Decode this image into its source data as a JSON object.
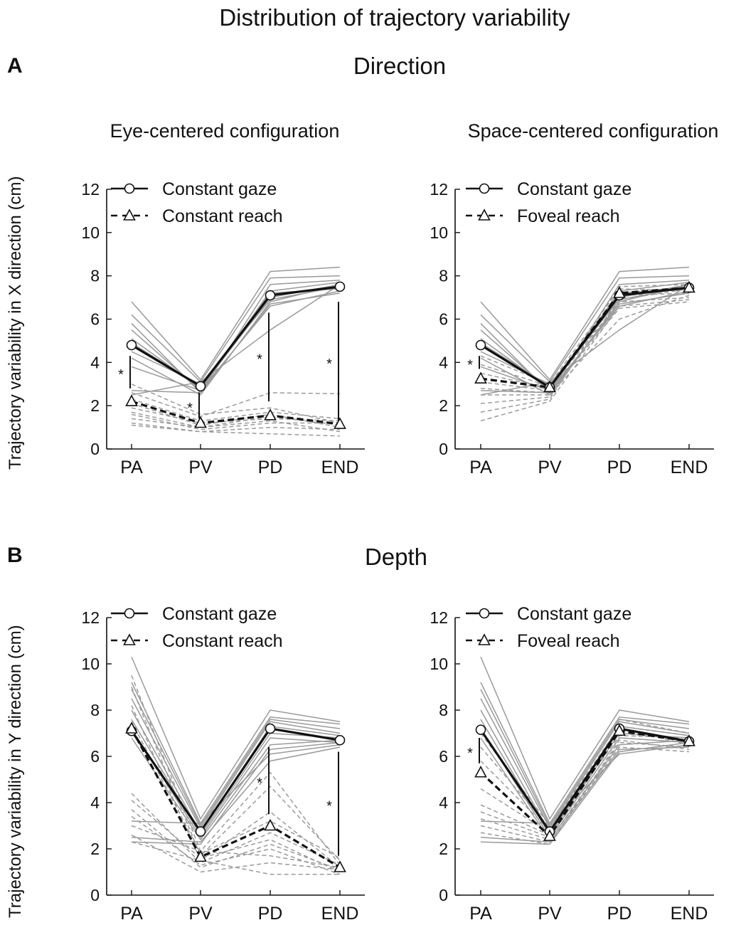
{
  "title": "Distribution of trajectory variability",
  "panels": [
    {
      "letter": "A",
      "title": "Direction",
      "ylabel": "Trajectory variability in X direction (cm)"
    },
    {
      "letter": "B",
      "title": "Depth",
      "ylabel": "Trajectory variability in Y direction (cm)"
    }
  ],
  "chart_data": [
    {
      "type": "line",
      "title": "Eye-centered configuration",
      "categories": [
        "PA",
        "PV",
        "PD",
        "END"
      ],
      "ylim": [
        0,
        12
      ],
      "yticks": [
        0,
        2,
        4,
        6,
        8,
        10,
        12
      ],
      "legend_position": "top-left",
      "series": [
        {
          "name": "Constant gaze",
          "values": [
            4.8,
            2.9,
            7.1,
            7.5
          ],
          "style": "solid",
          "marker": "circle"
        },
        {
          "name": "Constant reach",
          "values": [
            2.2,
            1.2,
            1.55,
            1.15
          ],
          "style": "dashed",
          "marker": "triangle"
        }
      ],
      "subject_lines": {
        "solid": [
          [
            6.8,
            3.2,
            8.2,
            8.4
          ],
          [
            6.2,
            3.1,
            7.9,
            8.0
          ],
          [
            5.8,
            2.6,
            7.6,
            7.8
          ],
          [
            5.5,
            2.7,
            7.3,
            7.7
          ],
          [
            5.1,
            2.8,
            7.0,
            7.6
          ],
          [
            4.9,
            2.9,
            7.2,
            7.4
          ],
          [
            4.5,
            3.0,
            6.9,
            7.5
          ],
          [
            4.2,
            2.5,
            6.8,
            7.6
          ],
          [
            3.8,
            2.7,
            6.6,
            7.3
          ],
          [
            2.7,
            2.6,
            6.7,
            7.2
          ],
          [
            2.5,
            3.1,
            5.5,
            7.6
          ]
        ],
        "dashed": [
          [
            3.0,
            1.6,
            1.9,
            1.2
          ],
          [
            2.6,
            1.5,
            2.6,
            2.55
          ],
          [
            2.3,
            1.3,
            1.7,
            1.4
          ],
          [
            2.1,
            1.1,
            1.6,
            1.0
          ],
          [
            1.9,
            1.2,
            1.4,
            1.3
          ],
          [
            1.7,
            1.0,
            1.5,
            1.1
          ],
          [
            1.6,
            0.9,
            1.2,
            1.2
          ],
          [
            1.4,
            1.0,
            1.3,
            0.8
          ],
          [
            1.2,
            0.8,
            1.0,
            0.9
          ],
          [
            1.1,
            0.8,
            0.7,
            0.6
          ]
        ]
      },
      "significance": [
        {
          "category": "PA",
          "from": 2.8,
          "to": 4.3,
          "label": "*"
        },
        {
          "category": "PV",
          "from": 1.4,
          "to": 2.6,
          "label": "*"
        },
        {
          "category": "PD",
          "from": 2.2,
          "to": 6.3,
          "label": "*"
        },
        {
          "category": "END",
          "from": 1.3,
          "to": 6.8,
          "label": "*"
        }
      ]
    },
    {
      "type": "line",
      "title": "Space-centered configuration",
      "categories": [
        "PA",
        "PV",
        "PD",
        "END"
      ],
      "ylim": [
        0,
        12
      ],
      "yticks": [
        0,
        2,
        4,
        6,
        8,
        10,
        12
      ],
      "legend_position": "top-left",
      "series": [
        {
          "name": "Constant gaze",
          "values": [
            4.8,
            2.85,
            7.1,
            7.45
          ],
          "style": "solid",
          "marker": "circle"
        },
        {
          "name": "Foveal reach",
          "values": [
            3.25,
            2.85,
            7.2,
            7.45
          ],
          "style": "dashed",
          "marker": "triangle"
        }
      ],
      "subject_lines": {
        "solid": [
          [
            6.8,
            3.2,
            8.2,
            8.4
          ],
          [
            6.2,
            3.1,
            7.9,
            8.0
          ],
          [
            5.8,
            2.6,
            7.6,
            7.8
          ],
          [
            5.5,
            2.7,
            7.3,
            7.7
          ],
          [
            5.1,
            2.8,
            7.0,
            7.6
          ],
          [
            4.9,
            2.9,
            7.2,
            7.4
          ],
          [
            4.5,
            3.0,
            6.9,
            7.5
          ],
          [
            4.2,
            2.5,
            6.8,
            7.6
          ],
          [
            3.8,
            2.7,
            6.6,
            7.3
          ],
          [
            2.7,
            2.6,
            6.7,
            7.2
          ],
          [
            2.5,
            3.1,
            5.5,
            7.6
          ]
        ],
        "dashed": [
          [
            4.3,
            3.0,
            7.4,
            7.3
          ],
          [
            3.9,
            2.9,
            7.1,
            7.2
          ],
          [
            3.5,
            2.8,
            6.8,
            7.0
          ],
          [
            3.1,
            2.7,
            7.5,
            7.6
          ],
          [
            2.8,
            2.6,
            6.5,
            6.8
          ],
          [
            2.5,
            2.5,
            6.0,
            7.1
          ],
          [
            2.1,
            2.4,
            6.9,
            7.4
          ],
          [
            1.7,
            2.3,
            7.2,
            7.5
          ],
          [
            1.3,
            2.2,
            6.6,
            6.9
          ]
        ]
      },
      "significance": [
        {
          "category": "PA",
          "from": 3.7,
          "to": 4.3,
          "label": "*"
        }
      ]
    },
    {
      "type": "line",
      "title": "",
      "categories": [
        "PA",
        "PV",
        "PD",
        "END"
      ],
      "ylim": [
        0,
        12
      ],
      "yticks": [
        0,
        2,
        4,
        6,
        8,
        10,
        12
      ],
      "legend_position": "top-left",
      "series": [
        {
          "name": "Constant gaze",
          "values": [
            7.1,
            2.75,
            7.2,
            6.7
          ],
          "style": "solid",
          "marker": "circle"
        },
        {
          "name": "Constant reach",
          "values": [
            7.2,
            1.65,
            3.0,
            1.2
          ],
          "style": "dashed",
          "marker": "triangle"
        }
      ],
      "subject_lines": {
        "solid": [
          [
            10.3,
            3.3,
            8.0,
            7.5
          ],
          [
            9.2,
            3.1,
            7.7,
            7.4
          ],
          [
            8.9,
            3.0,
            7.6,
            7.2
          ],
          [
            8.5,
            2.9,
            7.5,
            7.0
          ],
          [
            8.0,
            2.7,
            7.3,
            6.9
          ],
          [
            7.6,
            2.6,
            7.0,
            6.8
          ],
          [
            7.2,
            2.5,
            6.8,
            6.6
          ],
          [
            6.8,
            2.4,
            6.5,
            6.7
          ],
          [
            3.2,
            3.1,
            6.1,
            6.5
          ],
          [
            2.5,
            2.3,
            5.8,
            6.4
          ],
          [
            2.3,
            2.2,
            6.3,
            6.6
          ]
        ],
        "dashed": [
          [
            9.5,
            1.9,
            5.3,
            1.3
          ],
          [
            9.0,
            1.7,
            4.7,
            1.5
          ],
          [
            8.2,
            1.5,
            3.6,
            1.2
          ],
          [
            7.5,
            1.8,
            3.2,
            1.6
          ],
          [
            4.4,
            1.4,
            2.7,
            1.3
          ],
          [
            4.1,
            1.6,
            2.4,
            1.0
          ],
          [
            3.7,
            1.2,
            2.2,
            1.1
          ],
          [
            3.4,
            1.3,
            2.0,
            0.9
          ],
          [
            3.0,
            1.9,
            1.7,
            1.2
          ],
          [
            2.6,
            1.0,
            1.4,
            1.1
          ],
          [
            2.3,
            1.5,
            0.9,
            0.9
          ]
        ]
      },
      "significance": [
        {
          "category": "PD",
          "from": 3.5,
          "to": 6.4,
          "label": "*"
        },
        {
          "category": "END",
          "from": 1.7,
          "to": 6.2,
          "label": "*"
        }
      ]
    },
    {
      "type": "line",
      "title": "",
      "categories": [
        "PA",
        "PV",
        "PD",
        "END"
      ],
      "ylim": [
        0,
        12
      ],
      "yticks": [
        0,
        2,
        4,
        6,
        8,
        10,
        12
      ],
      "legend_position": "top-left",
      "series": [
        {
          "name": "Constant gaze",
          "values": [
            7.15,
            2.75,
            7.2,
            6.65
          ],
          "style": "solid",
          "marker": "circle"
        },
        {
          "name": "Foveal reach",
          "values": [
            5.3,
            2.55,
            7.1,
            6.65
          ],
          "style": "dashed",
          "marker": "triangle"
        }
      ],
      "subject_lines": {
        "solid": [
          [
            10.3,
            3.3,
            8.0,
            7.5
          ],
          [
            9.2,
            3.1,
            7.7,
            7.4
          ],
          [
            8.9,
            3.0,
            7.6,
            7.2
          ],
          [
            8.5,
            2.9,
            7.5,
            7.0
          ],
          [
            8.0,
            2.7,
            7.3,
            6.9
          ],
          [
            7.6,
            2.6,
            7.0,
            6.8
          ],
          [
            7.2,
            2.5,
            6.8,
            6.6
          ],
          [
            6.8,
            2.4,
            6.5,
            6.7
          ],
          [
            3.2,
            3.1,
            6.1,
            6.5
          ],
          [
            2.5,
            2.3,
            6.3,
            6.4
          ],
          [
            2.3,
            2.2,
            6.2,
            6.6
          ]
        ],
        "dashed": [
          [
            7.0,
            3.0,
            7.6,
            7.0
          ],
          [
            6.4,
            2.9,
            7.3,
            6.9
          ],
          [
            5.8,
            2.8,
            7.0,
            6.7
          ],
          [
            4.6,
            2.7,
            6.9,
            6.8
          ],
          [
            3.9,
            2.6,
            7.2,
            6.5
          ],
          [
            3.6,
            2.5,
            6.8,
            6.6
          ],
          [
            3.3,
            2.4,
            6.6,
            6.4
          ],
          [
            3.0,
            2.3,
            6.4,
            6.2
          ],
          [
            2.7,
            2.2,
            6.7,
            6.3
          ]
        ]
      },
      "significance": [
        {
          "category": "PA",
          "from": 5.7,
          "to": 6.8,
          "label": "*"
        }
      ]
    }
  ]
}
